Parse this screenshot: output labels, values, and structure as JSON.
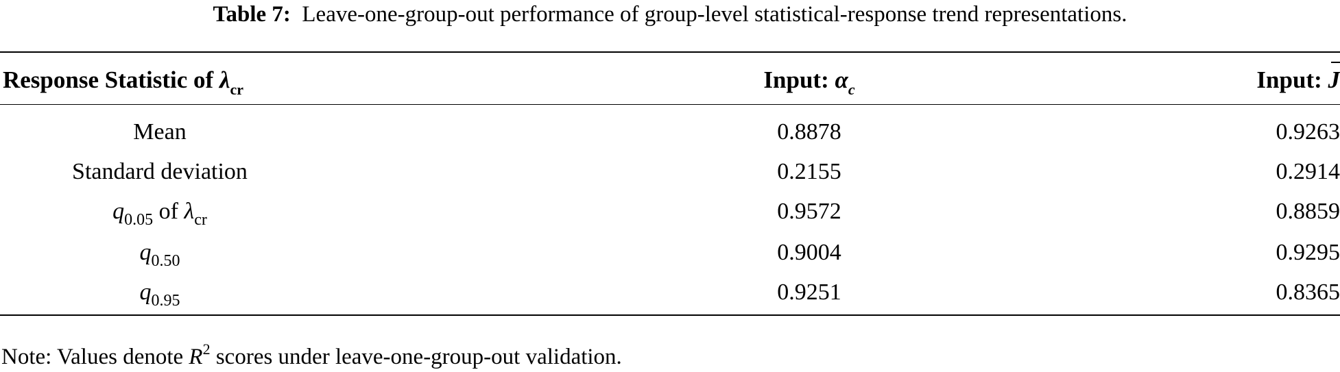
{
  "caption": {
    "label": "Table 7:",
    "text": "Leave-one-group-out performance of group-level statistical-response trend representations."
  },
  "header": {
    "col1_text": "Response Statistic of ",
    "col1_symbol": "λ",
    "col1_subscript": "cr",
    "col2_text": "Input: ",
    "col2_symbol": "α",
    "col2_subscript": "c",
    "col3_text": "Input: ",
    "col3_symbol": "J"
  },
  "rows": [
    {
      "label": "Mean",
      "alpha_c": "0.8878",
      "j_bar": "0.9263"
    },
    {
      "label": "Standard deviation",
      "alpha_c": "0.2155",
      "j_bar": "0.2914"
    },
    {
      "label_symbol": "q",
      "label_subscript": "0.05",
      "label_mid": " of ",
      "label_symbol2": "λ",
      "label_subscript2": "cr",
      "alpha_c": "0.9572",
      "j_bar": "0.8859"
    },
    {
      "label_symbol": "q",
      "label_subscript": "0.50",
      "alpha_c": "0.9004",
      "j_bar": "0.9295"
    },
    {
      "label_symbol": "q",
      "label_subscript": "0.95",
      "alpha_c": "0.9251",
      "j_bar": "0.8365"
    }
  ],
  "note": {
    "prefix": "Note: Values denote ",
    "symbol": "R",
    "superscript": "2",
    "suffix": " scores under leave-one-group-out validation."
  }
}
